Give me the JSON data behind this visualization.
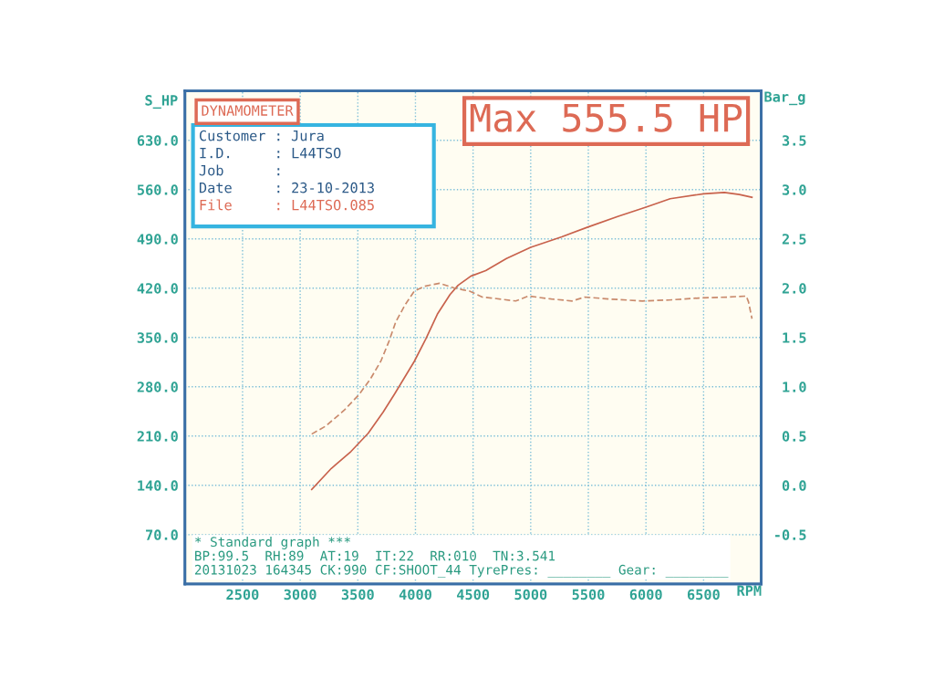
{
  "chart_data": {
    "type": "line",
    "title": "DYNAMOMETER",
    "xlabel": "RPM",
    "ylabel": "S_HP",
    "y2label": "Bar_g",
    "xlim": [
      2000,
      7000
    ],
    "xticks": [
      2500,
      3000,
      3500,
      4000,
      4500,
      5000,
      5500,
      6000,
      6500
    ],
    "ylim": [
      0,
      700
    ],
    "yticks": [
      {
        "value": 70,
        "label": "70.0"
      },
      {
        "value": 140,
        "label": "140.0"
      },
      {
        "value": 210,
        "label": "210.0"
      },
      {
        "value": 280,
        "label": "280.0"
      },
      {
        "value": 350,
        "label": "350.0"
      },
      {
        "value": 420,
        "label": "420.0"
      },
      {
        "value": 490,
        "label": "490.0"
      },
      {
        "value": 560,
        "label": "560.0"
      },
      {
        "value": 630,
        "label": "630.0"
      }
    ],
    "y2lim": [
      -1.0,
      4.0
    ],
    "y2ticks": [
      {
        "value": -0.5,
        "label": "-0.5"
      },
      {
        "value": 0,
        "label": "0.0"
      },
      {
        "value": 0.5,
        "label": "0.5"
      },
      {
        "value": 1,
        "label": "1.0"
      },
      {
        "value": 1.5,
        "label": "1.5"
      },
      {
        "value": 2,
        "label": "2.0"
      },
      {
        "value": 2.5,
        "label": "2.5"
      },
      {
        "value": 3,
        "label": "3.0"
      },
      {
        "value": 3.5,
        "label": "3.5"
      }
    ],
    "grid": true,
    "series": [
      {
        "color": "#c8624c",
        "line_style": "solid",
        "x": [
          3100,
          3270,
          3440,
          3590,
          3720,
          3820,
          3990,
          4090,
          4190,
          4300,
          4370,
          4480,
          4610,
          4790,
          5000,
          5270,
          5500,
          5760,
          6000,
          6210,
          6500,
          6680,
          6810,
          6920
        ],
        "values": [
          134,
          164,
          188,
          214,
          244,
          270,
          316,
          348,
          383,
          411,
          424,
          437,
          445,
          462,
          478,
          493,
          507,
          522,
          535,
          547,
          554,
          556,
          553,
          549
        ]
      },
      {
        "color": "#c98a6c",
        "line_style": "dashed",
        "axis": "y2",
        "x": [
          3100,
          3220,
          3380,
          3510,
          3610,
          3700,
          3770,
          3830,
          3910,
          3990,
          4080,
          4210,
          4340,
          4470,
          4580,
          4660,
          4870,
          4980,
          5180,
          5360,
          5470,
          5680,
          5970,
          6200,
          6460,
          6720,
          6870,
          6890,
          6920
        ],
        "values": [
          0.52,
          0.6,
          0.76,
          0.92,
          1.08,
          1.26,
          1.46,
          1.66,
          1.83,
          1.97,
          2.02,
          2.05,
          2.0,
          1.97,
          1.91,
          1.9,
          1.87,
          1.92,
          1.89,
          1.87,
          1.91,
          1.89,
          1.87,
          1.88,
          1.9,
          1.91,
          1.92,
          1.86,
          1.69
        ]
      }
    ],
    "annotations": [
      "Max 555.5 HP",
      "Customer : Jura\nI.D.     : L44TSO\nJob      :\nDate     : 23-10-2013\nFile     : L44TSO.085",
      "* Standard graph ***\nBP:99.5  RH:89  AT:19  IT:22  RR:010  TN:3.541\n20131023 164345 CK:990 CF:SHOOT_44 TyrePres: ________ Gear: ________"
    ]
  }
}
